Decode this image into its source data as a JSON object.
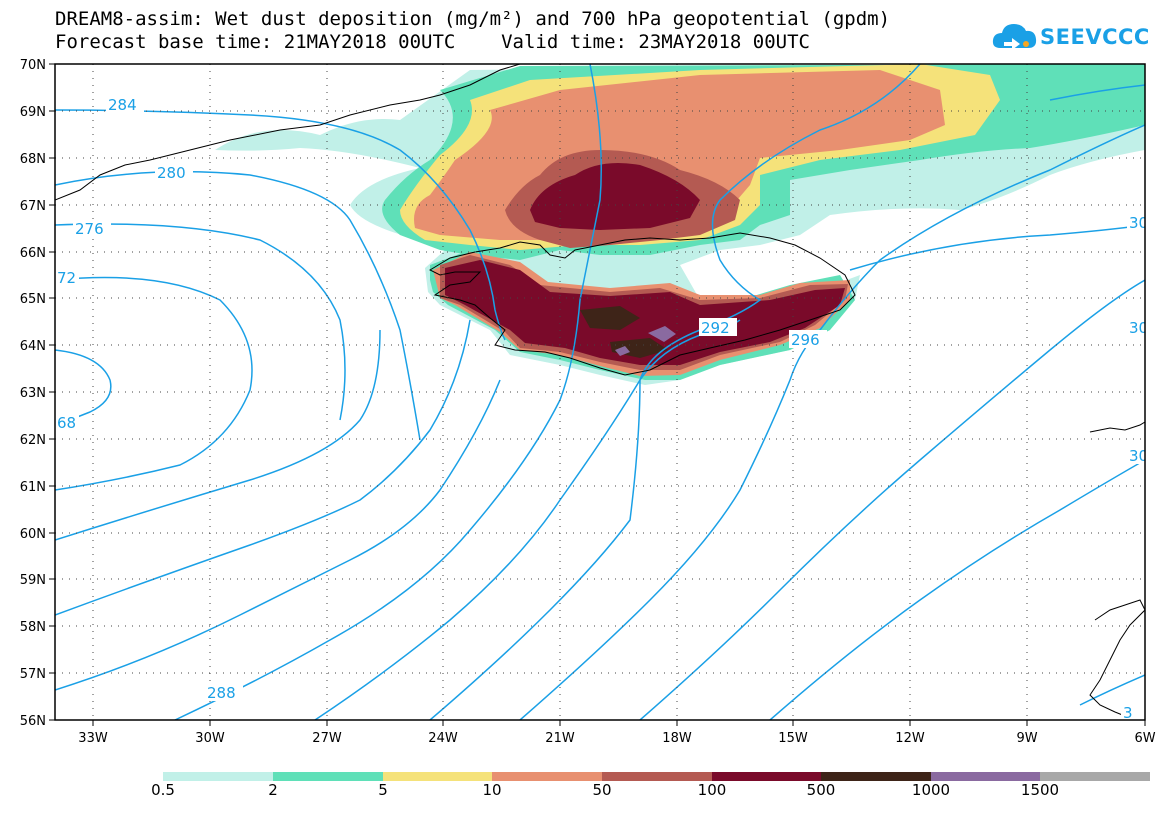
{
  "header": {
    "line1": "DREAM8-assim: Wet dust deposition (mg/m²) and 700 hPa geopotential (gpdm)",
    "line2": "Forecast base time: 21MAY2018 00UTC    Valid time: 23MAY2018 00UTC"
  },
  "logo": {
    "text": "SEEVCCC",
    "icon": "cloud-icon"
  },
  "map": {
    "lat_labels": [
      "70N",
      "69N",
      "68N",
      "67N",
      "66N",
      "65N",
      "64N",
      "63N",
      "62N",
      "61N",
      "60N",
      "59N",
      "58N",
      "57N",
      "56N"
    ],
    "lon_labels": [
      "33W",
      "30W",
      "27W",
      "24W",
      "21W",
      "18W",
      "15W",
      "12W",
      "9W",
      "6W"
    ],
    "contour_labels": [
      "284",
      "280",
      "276",
      "72",
      "68",
      "288",
      "292",
      "296",
      "30",
      "30",
      "30",
      "3"
    ]
  },
  "legend": {
    "thresholds": [
      "0.5",
      "2",
      "5",
      "10",
      "50",
      "100",
      "500",
      "1000",
      "1500"
    ],
    "colors": [
      "#c1f0e8",
      "#5fe0b8",
      "#f5e27a",
      "#e89070",
      "#b45a52",
      "#7a0a2a",
      "#3e2418",
      "#8a6aa0",
      "#a8a8a8"
    ]
  }
}
